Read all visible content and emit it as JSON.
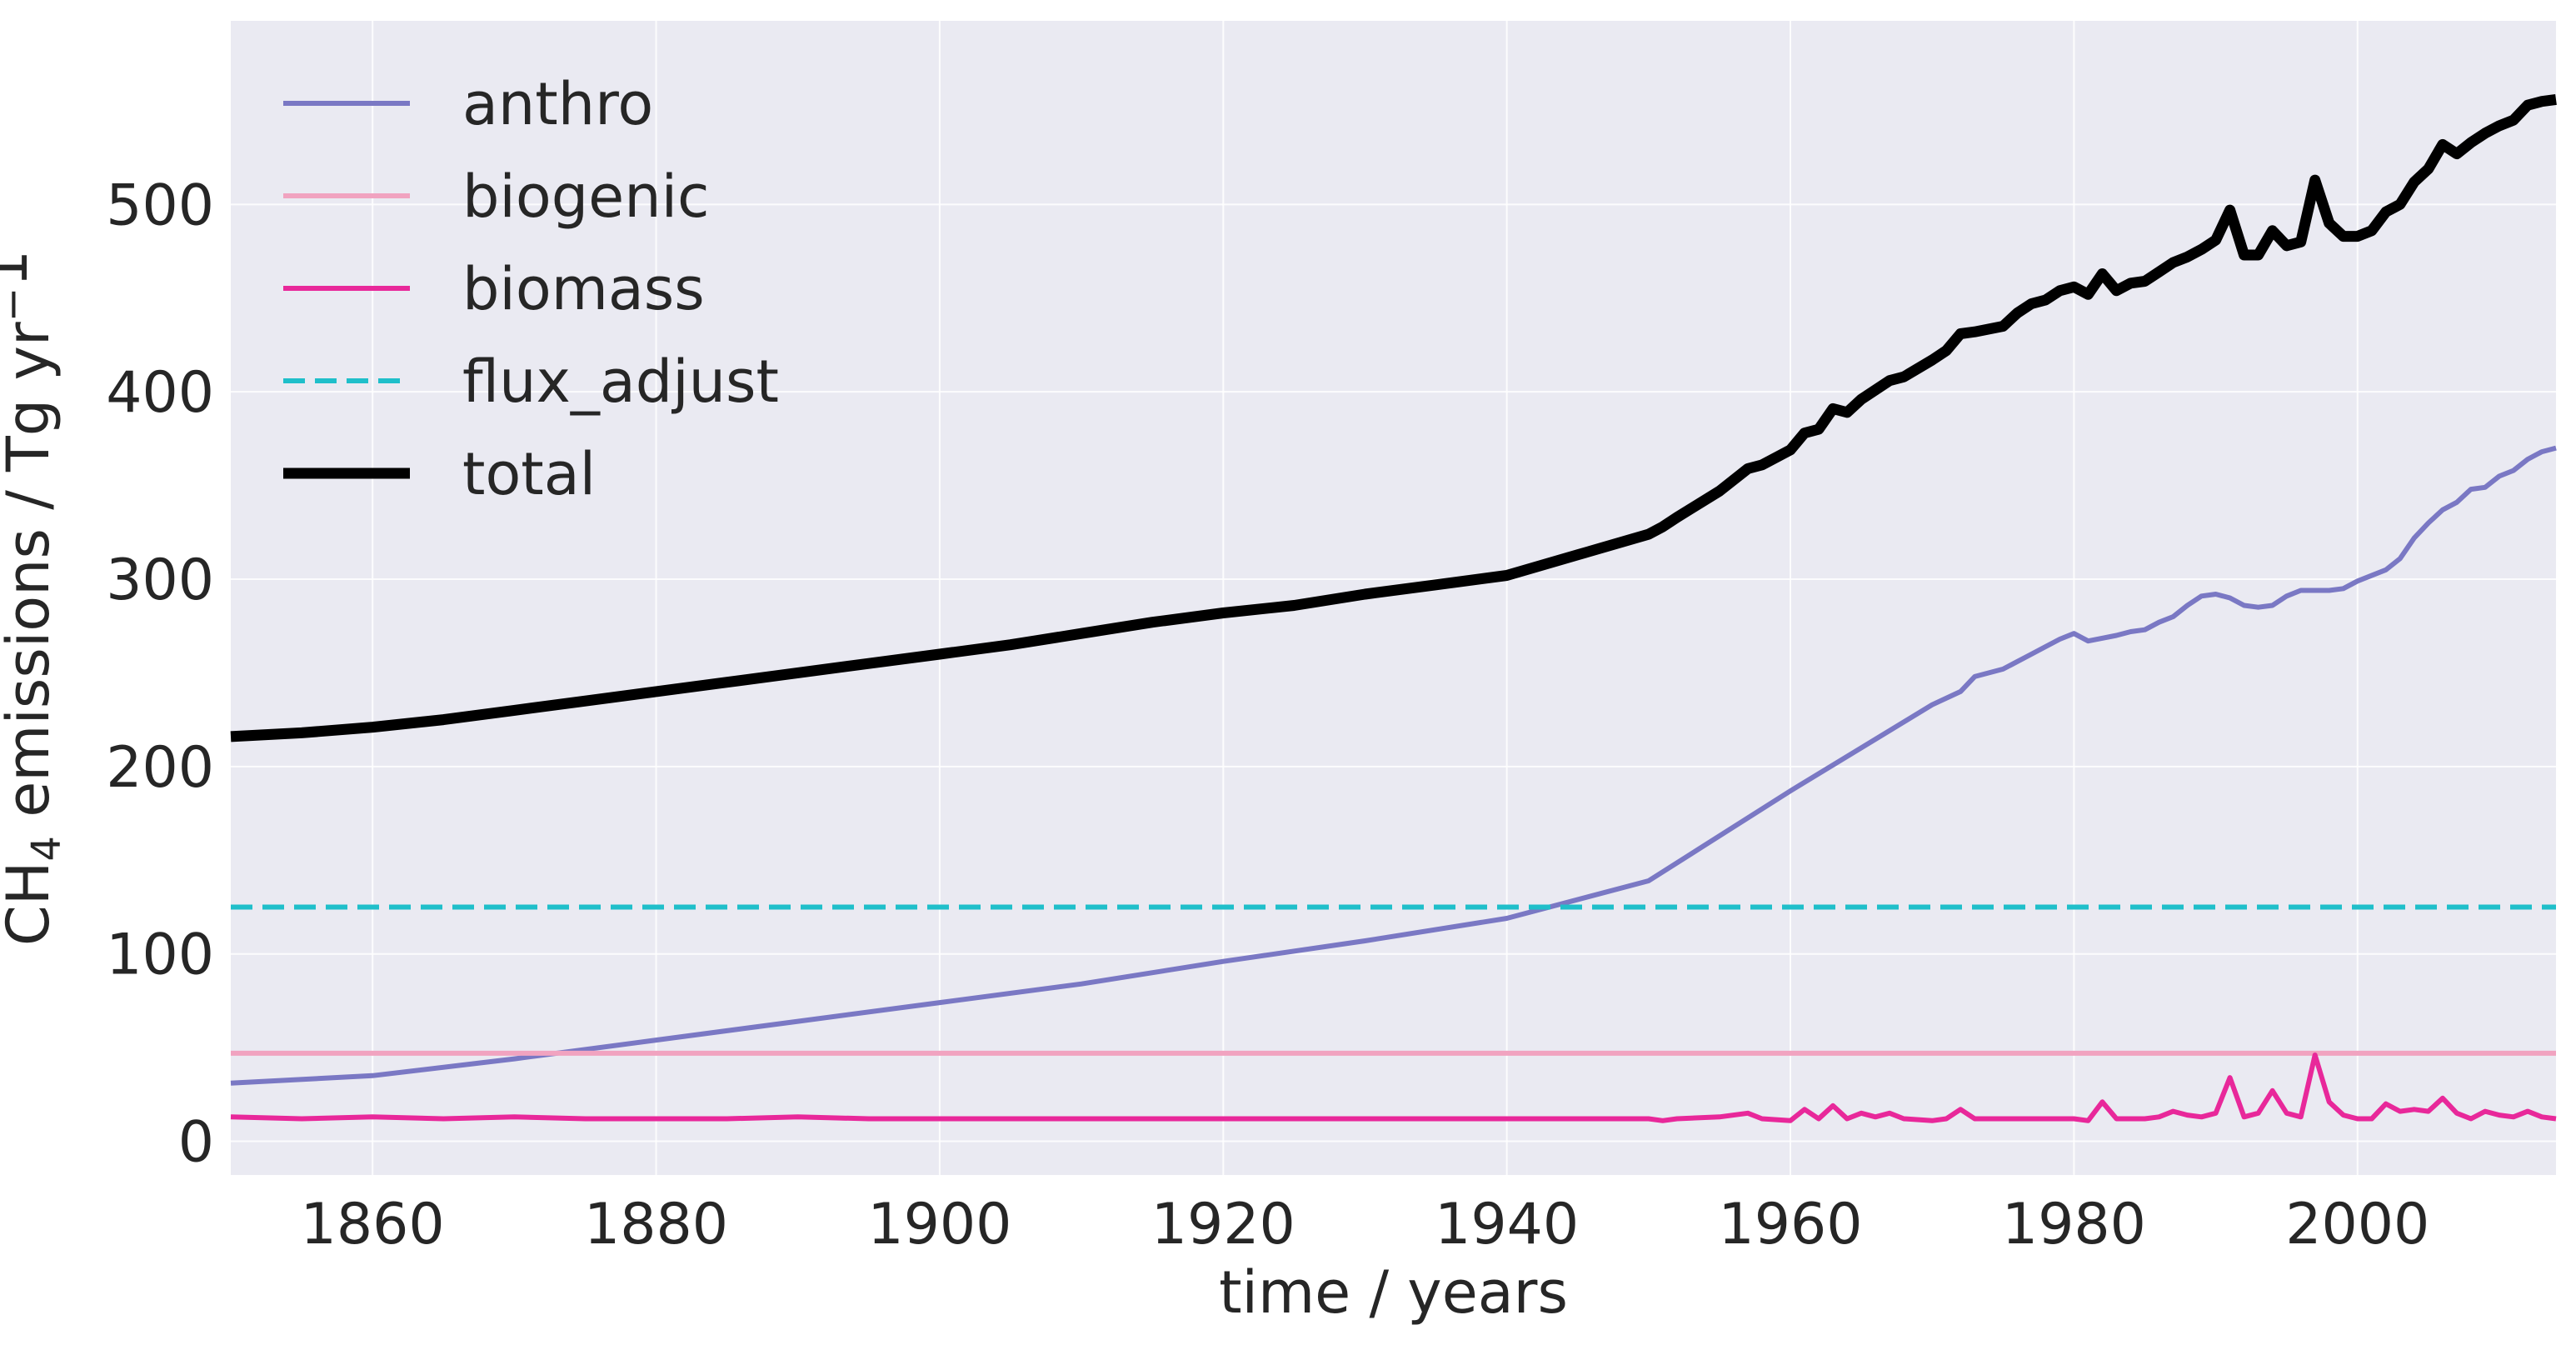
{
  "chart_data": {
    "type": "line",
    "xlabel": "time / years",
    "ylabel_main": "CH",
    "ylabel_sub": "4",
    "ylabel_rest": " emissions / Tg yr",
    "ylabel_sup": "−",
    "ylabel_end": "1",
    "xlim": [
      1850,
      2014
    ],
    "ylim": [
      -18,
      598
    ],
    "x_ticks": [
      1860,
      1880,
      1900,
      1920,
      1940,
      1960,
      1980,
      2000
    ],
    "x_tick_labels": [
      "1860",
      "1880",
      "1900",
      "1920",
      "1940",
      "1960",
      "1980",
      "2000"
    ],
    "y_ticks": [
      0,
      100,
      200,
      300,
      400,
      500
    ],
    "y_tick_labels": [
      "0",
      "100",
      "200",
      "300",
      "400",
      "500"
    ],
    "grid": true,
    "legend_placement": "top-left",
    "series": [
      {
        "name": "anthro",
        "color": "#7A78C4",
        "style": "solid",
        "width": "normal",
        "x": [
          1850,
          1860,
          1870,
          1880,
          1890,
          1900,
          1910,
          1920,
          1930,
          1940,
          1950,
          1960,
          1970,
          1972,
          1973,
          1975,
          1977,
          1978,
          1979,
          1980,
          1981,
          1983,
          1984,
          1985,
          1986,
          1987,
          1988,
          1989,
          1990,
          1991,
          1992,
          1993,
          1994,
          1995,
          1996,
          1998,
          1999,
          2000,
          2002,
          2003,
          2004,
          2005,
          2006,
          2007,
          2008,
          2009,
          2010,
          2011,
          2012,
          2013,
          2014
        ],
        "y": [
          31,
          35,
          44,
          54,
          64,
          74,
          84,
          96,
          107,
          119,
          139,
          187,
          233,
          240,
          248,
          252,
          260,
          264,
          268,
          271,
          267,
          270,
          272,
          273,
          277,
          280,
          286,
          291,
          292,
          290,
          286,
          285,
          286,
          291,
          294,
          294,
          295,
          299,
          305,
          311,
          322,
          330,
          337,
          341,
          348,
          349,
          355,
          358,
          364,
          368,
          370
        ]
      },
      {
        "name": "biogenic",
        "color": "#F1A3C0",
        "style": "solid",
        "width": "normal",
        "x": [
          1850,
          2014
        ],
        "y": [
          47,
          47
        ]
      },
      {
        "name": "biomass",
        "color": "#E8289A",
        "style": "solid",
        "width": "normal",
        "x": [
          1850,
          1855,
          1860,
          1865,
          1870,
          1875,
          1880,
          1885,
          1890,
          1895,
          1900,
          1905,
          1910,
          1915,
          1920,
          1925,
          1930,
          1935,
          1940,
          1945,
          1950,
          1951,
          1952,
          1955,
          1957,
          1958,
          1960,
          1961,
          1962,
          1963,
          1964,
          1965,
          1966,
          1967,
          1968,
          1970,
          1971,
          1972,
          1973,
          1975,
          1976,
          1978,
          1980,
          1981,
          1982,
          1983,
          1985,
          1986,
          1987,
          1988,
          1989,
          1990,
          1991,
          1992,
          1993,
          1994,
          1995,
          1996,
          1997,
          1998,
          1999,
          2000,
          2001,
          2002,
          2003,
          2004,
          2005,
          2006,
          2007,
          2008,
          2009,
          2010,
          2011,
          2012,
          2013,
          2014
        ],
        "y": [
          13,
          12,
          13,
          12,
          13,
          12,
          12,
          12,
          13,
          12,
          12,
          12,
          12,
          12,
          12,
          12,
          12,
          12,
          12,
          12,
          12,
          11,
          12,
          13,
          15,
          12,
          11,
          17,
          12,
          19,
          12,
          15,
          13,
          15,
          12,
          11,
          12,
          17,
          12,
          12,
          12,
          12,
          12,
          11,
          21,
          12,
          12,
          13,
          16,
          14,
          13,
          15,
          34,
          13,
          15,
          27,
          15,
          13,
          46,
          21,
          14,
          12,
          12,
          20,
          16,
          17,
          16,
          23,
          15,
          12,
          16,
          14,
          13,
          16,
          13,
          12
        ]
      },
      {
        "name": "flux_adjust",
        "color": "#1FBFCA",
        "style": "dashed",
        "width": "normal",
        "x": [
          1850,
          2014
        ],
        "y": [
          125,
          125
        ]
      },
      {
        "name": "total",
        "color": "#000000",
        "style": "solid",
        "width": "thick",
        "x": [
          1850,
          1855,
          1860,
          1865,
          1870,
          1875,
          1880,
          1885,
          1890,
          1895,
          1900,
          1905,
          1910,
          1915,
          1920,
          1925,
          1930,
          1935,
          1940,
          1945,
          1950,
          1951,
          1952,
          1955,
          1957,
          1958,
          1960,
          1961,
          1962,
          1963,
          1964,
          1965,
          1966,
          1967,
          1968,
          1970,
          1971,
          1972,
          1973,
          1975,
          1976,
          1977,
          1978,
          1979,
          1980,
          1981,
          1982,
          1983,
          1984,
          1985,
          1986,
          1987,
          1988,
          1989,
          1990,
          1991,
          1992,
          1993,
          1994,
          1995,
          1996,
          1997,
          1998,
          1999,
          2000,
          2001,
          2002,
          2003,
          2004,
          2005,
          2006,
          2007,
          2008,
          2009,
          2010,
          2011,
          2012,
          2013,
          2014
        ],
        "y": [
          216,
          218,
          221,
          225,
          230,
          235,
          240,
          245,
          250,
          255,
          260,
          265,
          271,
          277,
          282,
          286,
          292,
          297,
          302,
          313,
          324,
          328,
          333,
          347,
          359,
          361,
          369,
          378,
          380,
          391,
          389,
          396,
          401,
          406,
          408,
          417,
          422,
          431,
          432,
          435,
          442,
          447,
          449,
          454,
          456,
          452,
          463,
          454,
          458,
          459,
          464,
          469,
          472,
          476,
          481,
          497,
          473,
          473,
          486,
          478,
          480,
          513,
          490,
          483,
          483,
          486,
          496,
          500,
          512,
          519,
          532,
          527,
          533,
          538,
          542,
          545,
          553,
          555,
          556
        ]
      }
    ]
  }
}
